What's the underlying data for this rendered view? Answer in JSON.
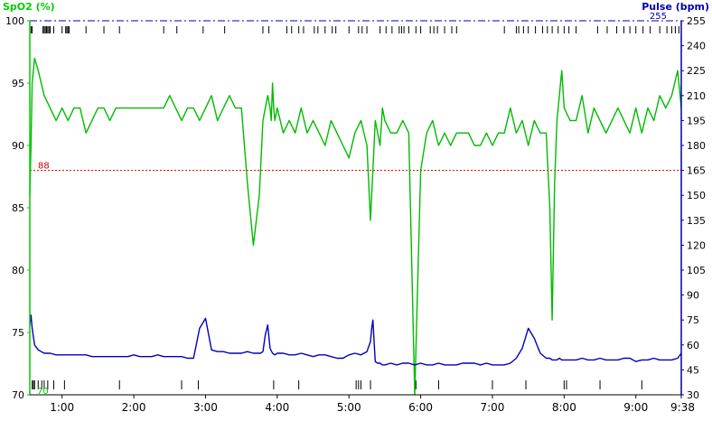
{
  "chart_data": {
    "type": "line",
    "left_axis": {
      "label": "SpO2 (%)",
      "min": 70,
      "max": 100,
      "ticks": [
        100,
        95,
        90,
        85,
        80,
        75,
        70
      ],
      "color": "#00cc00"
    },
    "right_axis": {
      "label": "Pulse (bpm)",
      "min": 30,
      "max": 255,
      "ticks": [
        255,
        240,
        225,
        210,
        195,
        180,
        165,
        150,
        135,
        120,
        105,
        90,
        75,
        60,
        45,
        30
      ],
      "top_marker_label": "255",
      "color": "#0000aa"
    },
    "x_axis": {
      "start_minutes": 33,
      "end_minutes": 578,
      "tick_labels": [
        "1:00",
        "2:00",
        "3:00",
        "4:00",
        "5:00",
        "6:00",
        "7:00",
        "8:00",
        "9:00",
        "9:38"
      ],
      "tick_minutes": [
        60,
        120,
        180,
        240,
        300,
        360,
        420,
        480,
        540,
        578
      ]
    },
    "threshold": {
      "value": 88,
      "label": "88",
      "axis": "left",
      "color": "#cc0000"
    },
    "bottom_corner_label": "70",
    "series": [
      {
        "key": "spo2",
        "axis": "left",
        "color": "#00bb00",
        "x": [
          33,
          34,
          35,
          37,
          40,
          45,
          50,
          55,
          60,
          65,
          70,
          75,
          80,
          85,
          90,
          95,
          100,
          105,
          110,
          115,
          120,
          125,
          130,
          135,
          140,
          145,
          150,
          155,
          160,
          165,
          170,
          175,
          180,
          185,
          190,
          195,
          200,
          205,
          210,
          215,
          220,
          225,
          228,
          230,
          232,
          234,
          235,
          236,
          237,
          238,
          240,
          245,
          250,
          255,
          260,
          265,
          270,
          275,
          280,
          285,
          290,
          295,
          300,
          305,
          310,
          315,
          318,
          320,
          322,
          324,
          326,
          328,
          330,
          335,
          340,
          345,
          350,
          355,
          360,
          365,
          370,
          375,
          380,
          385,
          390,
          395,
          400,
          405,
          410,
          415,
          420,
          425,
          430,
          435,
          440,
          445,
          450,
          455,
          460,
          465,
          468,
          470,
          472,
          474,
          476,
          478,
          480,
          485,
          490,
          495,
          500,
          505,
          510,
          515,
          520,
          525,
          530,
          535,
          540,
          545,
          550,
          555,
          560,
          565,
          570,
          575,
          578
        ],
        "y": [
          86,
          90,
          95,
          97,
          96,
          94,
          93,
          92,
          93,
          92,
          93,
          93,
          91,
          92,
          93,
          93,
          92,
          93,
          93,
          93,
          93,
          93,
          93,
          93,
          93,
          93,
          94,
          93,
          92,
          93,
          93,
          92,
          93,
          94,
          92,
          93,
          94,
          93,
          93,
          87,
          82,
          86,
          92,
          93,
          94,
          93,
          92,
          95,
          93,
          92,
          93,
          91,
          92,
          91,
          93,
          91,
          92,
          91,
          90,
          92,
          91,
          90,
          89,
          91,
          92,
          90,
          84,
          88,
          92,
          91,
          90,
          93,
          92,
          91,
          91,
          92,
          91,
          70,
          88,
          91,
          92,
          90,
          91,
          90,
          91,
          91,
          91,
          90,
          90,
          91,
          90,
          91,
          91,
          93,
          91,
          92,
          90,
          92,
          91,
          91,
          85,
          76,
          87,
          92,
          94,
          96,
          93,
          92,
          92,
          94,
          91,
          93,
          92,
          91,
          92,
          93,
          92,
          91,
          93,
          91,
          93,
          92,
          94,
          93,
          94,
          96,
          93
        ]
      },
      {
        "key": "pulse",
        "axis": "right",
        "color": "#0000bb",
        "x": [
          33,
          34,
          35,
          37,
          40,
          45,
          50,
          55,
          60,
          65,
          70,
          75,
          80,
          85,
          90,
          95,
          100,
          105,
          110,
          115,
          120,
          125,
          130,
          135,
          140,
          145,
          150,
          155,
          160,
          165,
          170,
          175,
          180,
          185,
          190,
          195,
          200,
          205,
          210,
          215,
          220,
          225,
          226,
          228,
          230,
          232,
          234,
          236,
          238,
          240,
          245,
          250,
          255,
          260,
          265,
          270,
          275,
          280,
          285,
          290,
          295,
          300,
          305,
          310,
          315,
          318,
          319,
          320,
          322,
          324,
          326,
          328,
          330,
          335,
          340,
          345,
          350,
          355,
          360,
          365,
          370,
          375,
          380,
          385,
          390,
          395,
          400,
          405,
          410,
          415,
          420,
          425,
          430,
          435,
          440,
          445,
          450,
          455,
          460,
          465,
          468,
          470,
          472,
          474,
          476,
          478,
          480,
          485,
          490,
          495,
          500,
          505,
          510,
          515,
          520,
          525,
          530,
          535,
          540,
          545,
          550,
          555,
          560,
          565,
          570,
          575,
          578
        ],
        "y": [
          72,
          78,
          70,
          60,
          57,
          55,
          55,
          54,
          54,
          54,
          54,
          54,
          54,
          53,
          53,
          53,
          53,
          53,
          53,
          53,
          54,
          53,
          53,
          53,
          54,
          53,
          53,
          53,
          53,
          52,
          52,
          70,
          76,
          57,
          56,
          56,
          55,
          55,
          55,
          56,
          55,
          55,
          55,
          56,
          66,
          72,
          58,
          55,
          54,
          55,
          55,
          54,
          54,
          55,
          54,
          53,
          54,
          54,
          53,
          52,
          52,
          54,
          55,
          54,
          56,
          62,
          70,
          75,
          50,
          49,
          49,
          48,
          48,
          49,
          48,
          49,
          49,
          48,
          49,
          48,
          48,
          49,
          48,
          48,
          48,
          49,
          49,
          49,
          48,
          49,
          48,
          48,
          48,
          49,
          52,
          58,
          70,
          64,
          55,
          52,
          52,
          51,
          51,
          51,
          52,
          51,
          51,
          51,
          51,
          52,
          51,
          51,
          52,
          51,
          51,
          51,
          52,
          52,
          50,
          51,
          51,
          52,
          51,
          51,
          51,
          52,
          55
        ]
      }
    ]
  }
}
